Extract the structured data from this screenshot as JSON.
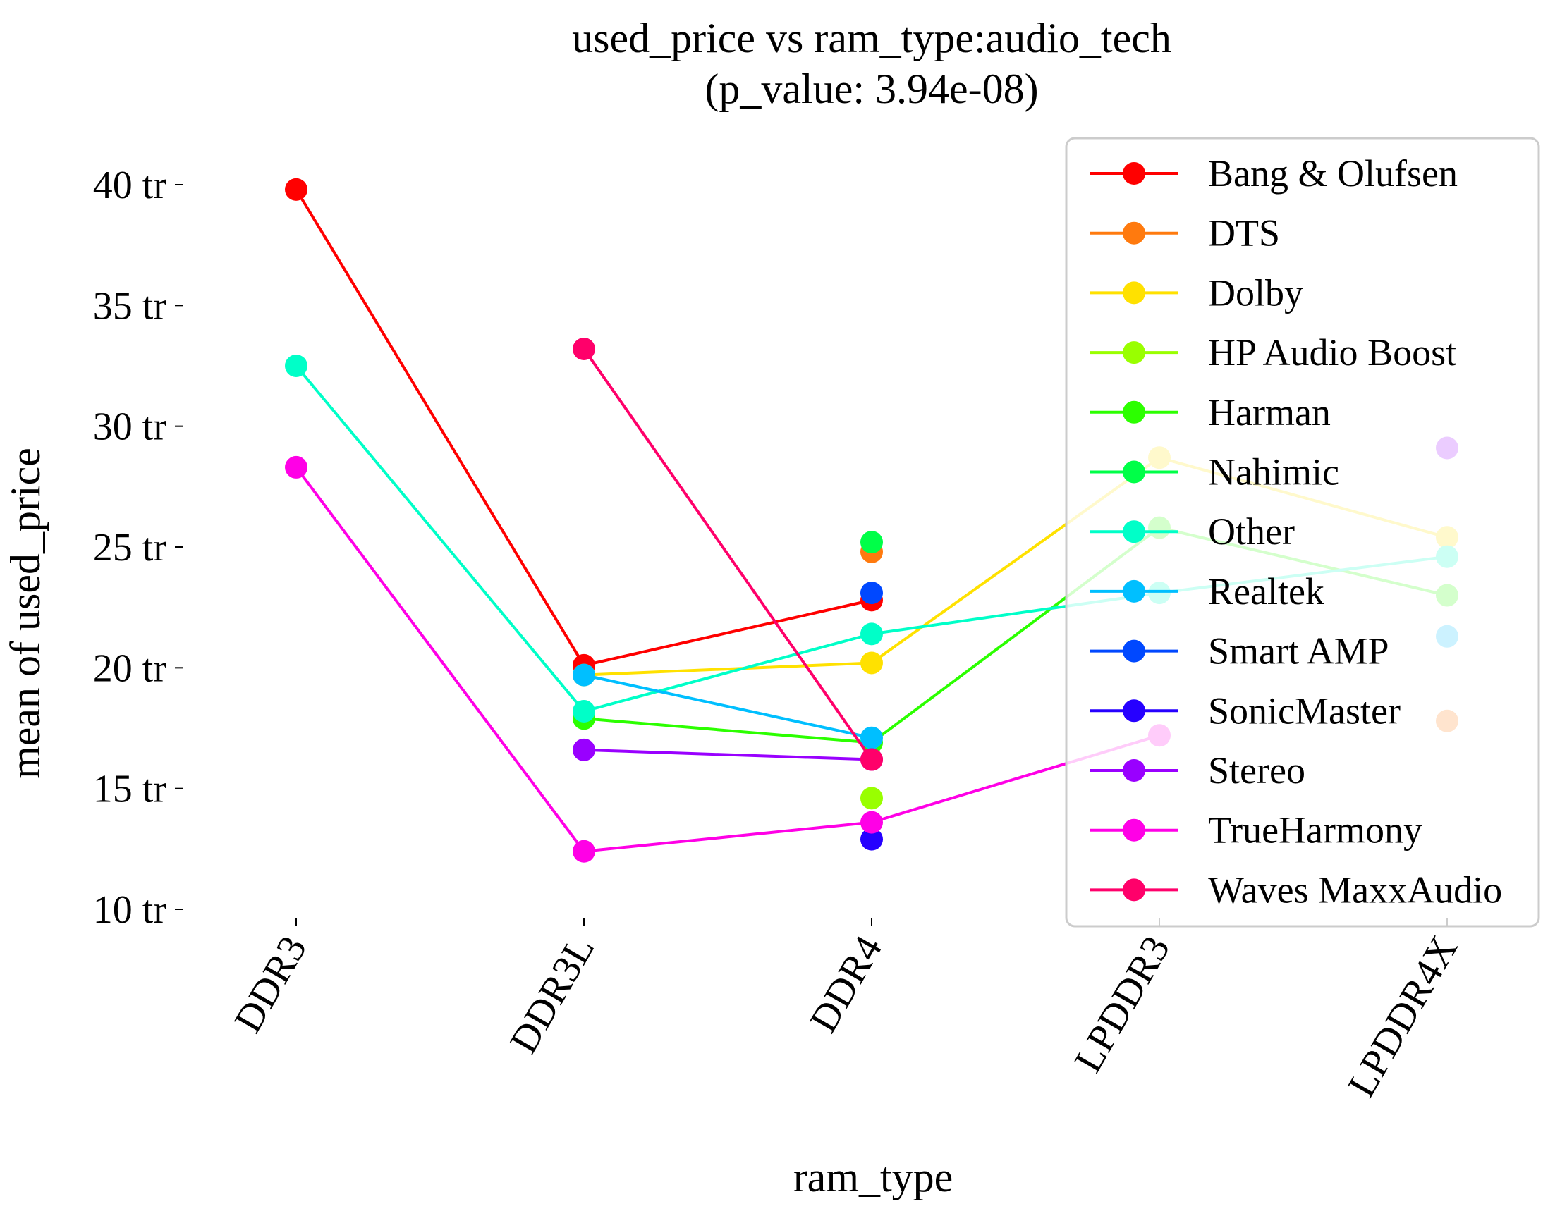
{
  "chart_data": {
    "type": "line",
    "title": "used_price vs ram_type:audio_tech",
    "subtitle": "(p_value: 3.94e-08)",
    "xlabel": "ram_type",
    "ylabel": "mean of used_price",
    "categories": [
      "DDR3",
      "DDR3L",
      "DDR4",
      "LPDDR3",
      "LPDDR4X"
    ],
    "ylim": [
      10,
      40
    ],
    "yticks": [
      {
        "value": 10,
        "label": "10 tr"
      },
      {
        "value": 15,
        "label": "15 tr"
      },
      {
        "value": 20,
        "label": "20 tr"
      },
      {
        "value": 25,
        "label": "25 tr"
      },
      {
        "value": 30,
        "label": "30 tr"
      },
      {
        "value": 35,
        "label": "35 tr"
      },
      {
        "value": 40,
        "label": "40 tr"
      }
    ],
    "grid": false,
    "legend_position": "top-right",
    "series": [
      {
        "name": "Bang & Olufsen",
        "color": "#ff0000",
        "values": [
          39.8,
          20.1,
          22.8,
          null,
          null
        ]
      },
      {
        "name": "DTS",
        "color": "#ff7a0e",
        "values": [
          null,
          null,
          24.8,
          null,
          17.8
        ]
      },
      {
        "name": "Dolby",
        "color": "#ffe100",
        "values": [
          null,
          19.7,
          20.2,
          28.7,
          25.4
        ]
      },
      {
        "name": "HP Audio Boost",
        "color": "#99ff00",
        "values": [
          null,
          null,
          14.6,
          null,
          null
        ]
      },
      {
        "name": "Harman",
        "color": "#2cff00",
        "values": [
          null,
          17.9,
          16.9,
          25.8,
          23.0
        ]
      },
      {
        "name": "Nahimic",
        "color": "#00ff48",
        "values": [
          null,
          null,
          25.2,
          null,
          null
        ]
      },
      {
        "name": "Other",
        "color": "#00ffc8",
        "values": [
          32.5,
          18.2,
          21.4,
          23.1,
          24.6
        ]
      },
      {
        "name": "Realtek",
        "color": "#00bfff",
        "values": [
          null,
          19.7,
          17.1,
          null,
          21.3
        ]
      },
      {
        "name": "Smart AMP",
        "color": "#0048ff",
        "values": [
          null,
          null,
          23.1,
          null,
          null
        ]
      },
      {
        "name": "SonicMaster",
        "color": "#2600ff",
        "values": [
          null,
          null,
          12.9,
          null,
          null
        ]
      },
      {
        "name": "Stereo",
        "color": "#9900ff",
        "values": [
          null,
          16.6,
          16.2,
          null,
          29.1
        ]
      },
      {
        "name": "TrueHarmony",
        "color": "#ff00e6",
        "values": [
          28.3,
          12.4,
          13.6,
          17.2,
          null
        ]
      },
      {
        "name": "Waves MaxxAudio",
        "color": "#ff006a",
        "values": [
          null,
          33.2,
          16.2,
          null,
          null
        ]
      }
    ]
  }
}
